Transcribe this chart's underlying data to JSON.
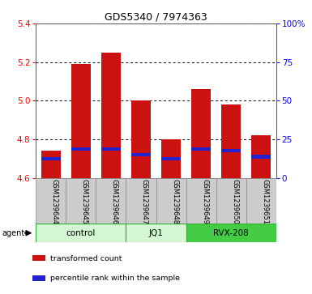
{
  "title": "GDS5340 / 7974363",
  "samples": [
    "GSM1239644",
    "GSM1239645",
    "GSM1239646",
    "GSM1239647",
    "GSM1239648",
    "GSM1239649",
    "GSM1239650",
    "GSM1239651"
  ],
  "bar_values": [
    4.74,
    5.19,
    5.25,
    5.0,
    4.8,
    5.06,
    4.98,
    4.82
  ],
  "percentile_values": [
    4.7,
    4.75,
    4.75,
    4.72,
    4.7,
    4.75,
    4.74,
    4.71
  ],
  "bar_bottom": 4.6,
  "bar_color": "#cc1111",
  "percentile_color": "#2222cc",
  "ylim": [
    4.6,
    5.4
  ],
  "yticks": [
    4.6,
    4.8,
    5.0,
    5.2,
    5.4
  ],
  "right_yticks": [
    0,
    25,
    50,
    75,
    100
  ],
  "groups": [
    {
      "label": "control",
      "indices": [
        0,
        1,
        2
      ],
      "color": "#d4f7d4"
    },
    {
      "label": "JQ1",
      "indices": [
        3,
        4
      ],
      "color": "#d4f7d4"
    },
    {
      "label": "RVX-208",
      "indices": [
        5,
        6,
        7
      ],
      "color": "#44cc44"
    }
  ],
  "agent_label": "agent",
  "legend_items": [
    {
      "label": "transformed count",
      "color": "#cc1111"
    },
    {
      "label": "percentile rank within the sample",
      "color": "#2222cc"
    }
  ],
  "background_color": "#ffffff",
  "plot_bg": "#ffffff",
  "bar_width": 0.65,
  "gridcolor": "#000000",
  "cell_bg": "#cccccc",
  "cell_border": "#888888"
}
